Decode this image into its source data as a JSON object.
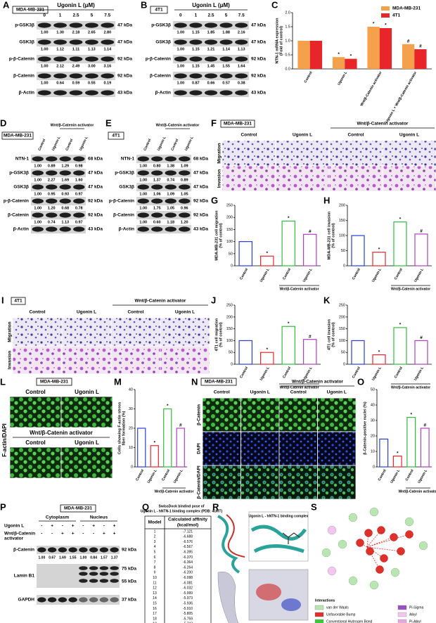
{
  "panels": {
    "A": {
      "letter": "A",
      "cell": "MDA-MB-231",
      "treatment": "Ugonin L (μM)",
      "lanes": [
        "0",
        "1",
        "2.5",
        "5",
        "7.5"
      ],
      "rows": [
        {
          "label": "p-GSK3β",
          "kda": "47 kDa",
          "quant": [
            "1.00",
            "1.30",
            "2.18",
            "2.65",
            "2.80"
          ]
        },
        {
          "label": "GSK3β",
          "kda": "47 kDa",
          "quant": [
            "1.00",
            "1.12",
            "1.11",
            "1.13",
            "1.14"
          ]
        },
        {
          "label": "p-β-Catenin",
          "kda": "92 kDa",
          "quant": [
            "1.00",
            "2.12",
            "2.49",
            "3.00",
            "3.16"
          ]
        },
        {
          "label": "β-Catenin",
          "kda": "92 kDa",
          "quant": [
            "1.00",
            "0.64",
            "0.59",
            "0.55",
            "0.19"
          ]
        },
        {
          "label": "β-Actin",
          "kda": "43 kDa"
        }
      ]
    },
    "B": {
      "letter": "B",
      "cell": "4T1",
      "treatment": "Ugonin L (μM)",
      "lanes": [
        "0",
        "1",
        "2.5",
        "5",
        "7.5"
      ],
      "rows": [
        {
          "label": "p-GSK3β",
          "kda": "47 kDa",
          "quant": [
            "1.00",
            "1.15",
            "1.85",
            "1.88",
            "2.16"
          ]
        },
        {
          "label": "GSK3β",
          "kda": "47 kDa",
          "quant": [
            "1.00",
            "1.15",
            "1.21",
            "1.14",
            "1.13"
          ]
        },
        {
          "label": "p-β-Catenin",
          "kda": "92 kDa",
          "quant": [
            "1.00",
            "1.15",
            "1.45",
            "1.55",
            "1.64"
          ]
        },
        {
          "label": "β-Catenin",
          "kda": "92 kDa",
          "quant": [
            "1.00",
            "0.87",
            "0.66",
            "0.57",
            "0.38"
          ]
        },
        {
          "label": "β-Actin",
          "kda": "43 kDa"
        }
      ]
    },
    "D": {
      "letter": "D",
      "cell": "MDA-MB-231",
      "group": "Wnt/β-Catenin activator",
      "lanes": [
        "Control",
        "Ugonin L",
        "Control",
        "Ugonin L"
      ],
      "rows": [
        {
          "label": "NTN-1",
          "kda": "68 kDa",
          "quant": [
            "1.00",
            "0.89",
            "1.29",
            "0.98"
          ]
        },
        {
          "label": "p-GSK3β",
          "kda": "47 kDa",
          "quant": [
            "1.00",
            "2.27",
            "1.69",
            "1.60"
          ]
        },
        {
          "label": "GSK3β",
          "kda": "47 kDa",
          "quant": [
            "1.00",
            "0.95",
            "0.93",
            "0.97"
          ]
        },
        {
          "label": "p-β-Catenin",
          "kda": "92 kDa",
          "quant": [
            "1.00",
            "1.20",
            "0.68",
            "0.78"
          ]
        },
        {
          "label": "β-Catenin",
          "kda": "92 kDa",
          "quant": [
            "1.00",
            "0.74",
            "1.13",
            "0.97"
          ]
        },
        {
          "label": "β-Actin",
          "kda": "43 kDa"
        }
      ]
    },
    "E": {
      "letter": "E",
      "cell": "4T1",
      "group": "Wnt/β-Catenin activator",
      "lanes": [
        "Control",
        "Ugonin L",
        "Control",
        "Ugonin L"
      ],
      "rows": [
        {
          "label": "NTN-1",
          "kda": "68 kDa",
          "quant": [
            "1.00",
            "0.80",
            "1.38",
            "1.09"
          ]
        },
        {
          "label": "p-GSK3β",
          "kda": "47 kDa",
          "quant": [
            "1.00",
            "1.37",
            "0.74",
            "0.89"
          ]
        },
        {
          "label": "GSK3β",
          "kda": "47 kDa",
          "quant": [
            "1.00",
            "1.06",
            "1.09",
            "1.05"
          ]
        },
        {
          "label": "p-β-Catenin",
          "kda": "92 kDa",
          "quant": [
            "1.00",
            "1.75",
            "1.05",
            "0.96"
          ]
        },
        {
          "label": "β-Catenin",
          "kda": "92 kDa",
          "quant": [
            "1.00",
            "0.60",
            "1.18",
            "1.20"
          ]
        },
        {
          "label": "β-Actin",
          "kda": "43 kDa"
        }
      ]
    },
    "F": {
      "letter": "F",
      "cell": "MDA-MB-231",
      "group": "Wnt/β-Catenin activator",
      "columns": [
        "Control",
        "Ugonin L",
        "Control",
        "Ugonin L"
      ],
      "rows": [
        "Migration",
        "Invasion"
      ]
    },
    "I": {
      "letter": "I",
      "cell": "4T1",
      "group": "Wnt/β-Catenin activator",
      "columns": [
        "Control",
        "Ugonin L",
        "Control",
        "Ugonin L"
      ],
      "rows": [
        "Migration",
        "Invasion"
      ]
    },
    "L": {
      "letter": "L",
      "cell": "MDA-MB-231",
      "group": "Wnt/β-Catenin activator",
      "columns": [
        "Control",
        "Ugonin L",
        "Control",
        "Ugonin L"
      ],
      "stain": "F-actin/DAPI"
    },
    "N": {
      "letter": "N",
      "cell": "MDA-MB-231",
      "group": "Wnt/β-Catenin activator",
      "columns": [
        "Control",
        "Ugonin L",
        "Control",
        "Ugonin L"
      ],
      "rows": [
        "β-Catenin",
        "DAPI",
        "β-Catenin/DAPI"
      ]
    },
    "P": {
      "letter": "P",
      "cell": "MDA-MB-231",
      "compartments": [
        "Cytoplasm",
        "Nucleus"
      ],
      "treatments": [
        {
          "label": [
            "Ugonin L"
          ],
          "signs": [
            "-",
            "+",
            "-",
            "+",
            "-",
            "+",
            "-",
            "+"
          ]
        },
        {
          "label": [
            "Wnt/β-Catenin",
            "activator"
          ],
          "signs": [
            "-",
            "-",
            "+",
            "+",
            "-",
            "-",
            "+",
            "+"
          ]
        }
      ],
      "rows": [
        {
          "label": "β-Catenin",
          "kda": [
            "92 kDa"
          ],
          "quant": [
            "1.00",
            "0.67",
            "1.69",
            "1.55",
            "1.00",
            "0.84",
            "1.57",
            "1.37"
          ]
        },
        {
          "label": "Lamin B1",
          "kda": [
            "75 kDa",
            "55 kDa"
          ]
        },
        {
          "label": "GAPDH",
          "kda": [
            "37 kDa"
          ]
        }
      ]
    },
    "Q": {
      "letter": "Q",
      "title": [
        "SwissDock bindind pose of",
        "Ugonin L - hNTN-1 binding complex (PDB: 4URT)"
      ],
      "header": [
        "Model",
        [
          "Calculated affinity",
          "(kcal/mol)"
        ]
      ],
      "rows": [
        [
          "1",
          "-7.121"
        ],
        [
          "2",
          "-6.688"
        ],
        [
          "3",
          "-6.576"
        ],
        [
          "4",
          "-6.567"
        ],
        [
          "5",
          "-6.395"
        ],
        [
          "6",
          "-6.370"
        ],
        [
          "7",
          "-6.364"
        ],
        [
          "8",
          "-6.264"
        ],
        [
          "9",
          "-6.200"
        ],
        [
          "10",
          "-6.098"
        ],
        [
          "11",
          "-6.081"
        ],
        [
          "12",
          "-6.032"
        ],
        [
          "13",
          "-5.999"
        ],
        [
          "14",
          "-5.973"
        ],
        [
          "15",
          "-5.936"
        ],
        [
          "16",
          "-5.910"
        ],
        [
          "17",
          "-5.805"
        ],
        [
          "18",
          "-5.759"
        ],
        [
          "19",
          "-5.742"
        ],
        [
          "20",
          "-5.630"
        ]
      ]
    },
    "R": {
      "letter": "R",
      "caption": "Ugonin L - hNTN-1 binding complex"
    },
    "S": {
      "letter": "S",
      "legend_title": "Interactions",
      "legend": [
        {
          "label": "van der Waals",
          "color": "#b8e6b0"
        },
        {
          "label": "Unfavorable Bump",
          "color": "#e0302a"
        },
        {
          "label": "Conventional Hydrogen Bond",
          "color": "#3cc83c"
        },
        {
          "label": "Pi-Sigma",
          "color": "#9b4fc6"
        },
        {
          "label": "Alkyl",
          "color": "#f2c6ee"
        },
        {
          "label": "Pi-Alkyl",
          "color": "#e6a8e0"
        }
      ]
    }
  },
  "chart_data": [
    {
      "type": "bar",
      "letter": "C",
      "ylabel": [
        "NTN-1 mRNA expression",
        "(Fold of control)"
      ],
      "categories": [
        "Control",
        "Ugonin L",
        "Wnt/β-Catenin activator",
        "Ugonin L + Wnt/β-Catenin activator"
      ],
      "series": [
        {
          "name": "MDA-MB-231",
          "color": "#f5a04a",
          "values": [
            1,
            0.42,
            1.5,
            0.88
          ],
          "annotations": [
            null,
            "*",
            "*",
            "#"
          ]
        },
        {
          "name": "4T1",
          "color": "#e8262a",
          "values": [
            1,
            0.36,
            1.45,
            0.7
          ],
          "annotations": [
            null,
            "*",
            "*",
            "#"
          ]
        }
      ],
      "ylim": [
        0,
        2
      ],
      "yticks": [
        {
          "value": 0,
          "label": "0.0"
        },
        {
          "value": 0.5,
          "label": "0.5"
        },
        {
          "value": 1,
          "label": "1.0"
        },
        {
          "value": 1.5,
          "label": "1.5"
        },
        {
          "value": 2,
          "label": "2.0"
        }
      ],
      "bar_style": "filled",
      "legend": "top-right"
    },
    {
      "type": "bar",
      "letter": "G",
      "ylabel": [
        "MDA-MB-231 cell migration",
        "(% of control)"
      ],
      "categories": [
        "Control",
        "Ugonin L",
        "Control",
        "Ugonin L"
      ],
      "group_label": "Wnt/β-Catenin activator",
      "values": [
        100,
        40,
        185,
        130
      ],
      "annotations": [
        null,
        "*",
        "*",
        "#"
      ],
      "colors": [
        "#2a3ee0",
        "#e8262a",
        "#2fbf3a",
        "#b040c0"
      ],
      "ylim": [
        0,
        250
      ],
      "yticks": [
        0,
        50,
        100,
        150,
        200,
        250
      ],
      "bar_style": "outline"
    },
    {
      "type": "bar",
      "letter": "H",
      "ylabel": [
        "MDA-MB-231 cell invasion",
        "(% of control)"
      ],
      "categories": [
        "Control",
        "Ugonin L",
        "Control",
        "Ugonin L"
      ],
      "group_label": "Wnt/β-Catenin activator",
      "values": [
        100,
        45,
        145,
        105
      ],
      "annotations": [
        null,
        "*",
        "*",
        "#"
      ],
      "colors": [
        "#2a3ee0",
        "#e8262a",
        "#2fbf3a",
        "#b040c0"
      ],
      "ylim": [
        0,
        200
      ],
      "yticks": [
        0,
        50,
        100,
        150,
        200
      ],
      "bar_style": "outline"
    },
    {
      "type": "bar",
      "letter": "J",
      "ylabel": [
        "4T1 cell migration",
        "(% of control)"
      ],
      "categories": [
        "Control",
        "Ugonin L",
        "Control",
        "Ugonin L"
      ],
      "group_label": "Wnt/β-Catenin activator",
      "values": [
        100,
        50,
        160,
        105
      ],
      "annotations": [
        null,
        "*",
        "*",
        "#"
      ],
      "colors": [
        "#2a3ee0",
        "#e8262a",
        "#2fbf3a",
        "#b040c0"
      ],
      "ylim": [
        0,
        250
      ],
      "yticks": [
        0,
        50,
        100,
        150,
        200,
        250
      ],
      "bar_style": "outline"
    },
    {
      "type": "bar",
      "letter": "K",
      "ylabel": [
        "4T1 cell invasion",
        "(% of control)"
      ],
      "categories": [
        "Control",
        "Ugonin L",
        "Control",
        "Ugonin L"
      ],
      "group_label": "Wnt/β-Catenin activator",
      "values": [
        100,
        40,
        155,
        100
      ],
      "annotations": [
        null,
        "*",
        "*",
        "#"
      ],
      "colors": [
        "#2a3ee0",
        "#e8262a",
        "#2fbf3a",
        "#b040c0"
      ],
      "ylim": [
        0,
        250
      ],
      "yticks": [
        0,
        50,
        100,
        150,
        200,
        250
      ],
      "bar_style": "outline"
    },
    {
      "type": "bar",
      "letter": "M",
      "ylabel": [
        "Cells showing F-actin stress",
        "fiber formation (%)"
      ],
      "categories": [
        "Control",
        "Ugonin L",
        "Control",
        "Ugonin L"
      ],
      "group_label": "Wnt/β-Catenin activator",
      "values": [
        20,
        11,
        30,
        20
      ],
      "annotations": [
        null,
        "*",
        "*",
        "#"
      ],
      "colors": [
        "#2a3ee0",
        "#e8262a",
        "#2fbf3a",
        "#b040c0"
      ],
      "ylim": [
        0,
        40
      ],
      "yticks": [
        0,
        10,
        20,
        30,
        40
      ],
      "bar_style": "outline"
    },
    {
      "type": "bar",
      "letter": "O",
      "ylabel": [
        "β-Catenin-positive nuclei (%)"
      ],
      "categories": [
        "Control",
        "Ugonin L",
        "Control",
        "Ugonin L"
      ],
      "group_label": "Wnt/β-Catenin activator",
      "values": [
        18,
        7,
        32,
        25
      ],
      "annotations": [
        null,
        "*",
        "*",
        "#"
      ],
      "colors": [
        "#2a3ee0",
        "#e8262a",
        "#2fbf3a",
        "#b040c0"
      ],
      "ylim": [
        0,
        50
      ],
      "yticks": [
        0,
        10,
        20,
        30,
        40,
        50
      ],
      "bar_style": "outline"
    }
  ]
}
